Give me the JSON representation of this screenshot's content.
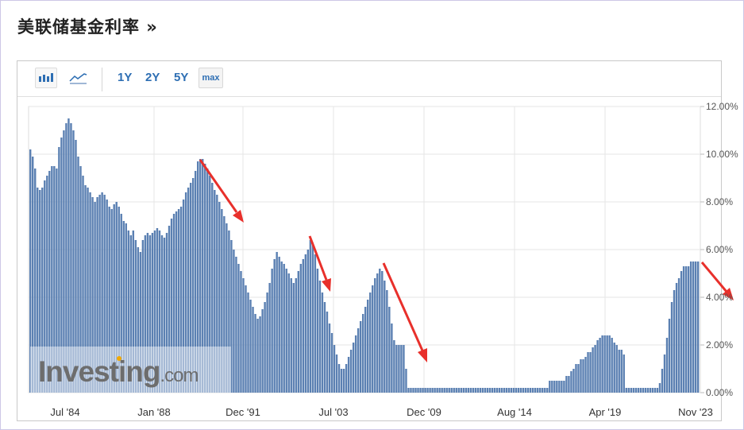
{
  "page": {
    "title": "美联储基金利率 »"
  },
  "toolbar": {
    "ranges": [
      "1Y",
      "2Y",
      "5Y"
    ],
    "max_label": "max",
    "icons": [
      "bar-chart-icon",
      "line-chart-icon"
    ]
  },
  "watermark": {
    "brand": "Investing",
    "suffix": ".com"
  },
  "colors": {
    "bar": "#5b80b2",
    "arrow": "#e8302b",
    "grid": "#e6e6e6"
  },
  "chart_data": {
    "type": "bar",
    "title": "",
    "xlabel": "",
    "ylabel": "",
    "ylim": [
      0,
      12
    ],
    "grid": true,
    "y_axis_position": "right",
    "yticks": [
      "0.00%",
      "2.00%",
      "4.00%",
      "6.00%",
      "8.00%",
      "10.00%",
      "12.00%"
    ],
    "xticks": [
      "Jul '84",
      "Jan '88",
      "Dec '91",
      "Jul '03",
      "Dec '09",
      "Aug '14",
      "Apr '19",
      "Nov '23"
    ],
    "series": [
      {
        "values": [
          10.2,
          9.9,
          9.4,
          8.6,
          8.5,
          8.6,
          8.9,
          9.1,
          9.3,
          9.5,
          9.5,
          9.4,
          10.3,
          10.7,
          11.0,
          11.3,
          11.5,
          11.3,
          11.0,
          10.6,
          9.9,
          9.5,
          9.1,
          8.7,
          8.6,
          8.4,
          8.2,
          8.0,
          8.2,
          8.3,
          8.4,
          8.3,
          8.1,
          7.8,
          7.7,
          7.9,
          8.0,
          7.8,
          7.5,
          7.2,
          7.1,
          6.8,
          6.6,
          6.8,
          6.4,
          6.1,
          5.9,
          6.4,
          6.6,
          6.7,
          6.6,
          6.7,
          6.8,
          6.9,
          6.8,
          6.6,
          6.5,
          6.7,
          7.0,
          7.3,
          7.5,
          7.6,
          7.7,
          7.8,
          8.1,
          8.4,
          8.6,
          8.8,
          9.0,
          9.3,
          9.7,
          9.8,
          9.8,
          9.6,
          9.4,
          9.1,
          8.8,
          8.5,
          8.3,
          8.0,
          7.7,
          7.4,
          7.1,
          6.8,
          6.4,
          6.0,
          5.7,
          5.4,
          5.1,
          4.8,
          4.5,
          4.2,
          3.9,
          3.6,
          3.3,
          3.1,
          3.2,
          3.5,
          3.8,
          4.2,
          4.6,
          5.2,
          5.6,
          5.9,
          5.7,
          5.5,
          5.4,
          5.2,
          5.0,
          4.8,
          4.6,
          4.8,
          5.1,
          5.4,
          5.6,
          5.8,
          6.0,
          6.4,
          6.2,
          5.8,
          5.2,
          4.7,
          4.2,
          3.8,
          3.4,
          2.9,
          2.5,
          2.0,
          1.6,
          1.2,
          1.0,
          1.0,
          1.2,
          1.5,
          1.8,
          2.1,
          2.4,
          2.7,
          3.0,
          3.3,
          3.6,
          3.9,
          4.2,
          4.5,
          4.8,
          5.0,
          5.2,
          5.1,
          4.7,
          4.3,
          3.6,
          2.9,
          2.2,
          2.0,
          2.0,
          2.0,
          2.0,
          1.0,
          0.2,
          0.2,
          0.2,
          0.2,
          0.2,
          0.2,
          0.2,
          0.2,
          0.2,
          0.2,
          0.2,
          0.2,
          0.2,
          0.2,
          0.2,
          0.2,
          0.2,
          0.2,
          0.2,
          0.2,
          0.2,
          0.2,
          0.2,
          0.2,
          0.2,
          0.2,
          0.2,
          0.2,
          0.2,
          0.2,
          0.2,
          0.2,
          0.2,
          0.2,
          0.2,
          0.2,
          0.2,
          0.2,
          0.2,
          0.2,
          0.2,
          0.2,
          0.2,
          0.2,
          0.2,
          0.2,
          0.2,
          0.2,
          0.2,
          0.2,
          0.2,
          0.2,
          0.2,
          0.2,
          0.2,
          0.2,
          0.2,
          0.2,
          0.2,
          0.5,
          0.5,
          0.5,
          0.5,
          0.5,
          0.5,
          0.5,
          0.7,
          0.7,
          0.9,
          1.0,
          1.2,
          1.2,
          1.4,
          1.4,
          1.5,
          1.7,
          1.7,
          1.9,
          2.0,
          2.2,
          2.3,
          2.4,
          2.4,
          2.4,
          2.4,
          2.3,
          2.1,
          2.0,
          1.8,
          1.8,
          1.6,
          0.2,
          0.2,
          0.2,
          0.2,
          0.2,
          0.2,
          0.2,
          0.2,
          0.2,
          0.2,
          0.2,
          0.2,
          0.2,
          0.2,
          0.4,
          1.0,
          1.6,
          2.3,
          3.1,
          3.8,
          4.3,
          4.6,
          4.8,
          5.1,
          5.3,
          5.3,
          5.3,
          5.5,
          5.5,
          5.5,
          5.5
        ]
      }
    ]
  }
}
